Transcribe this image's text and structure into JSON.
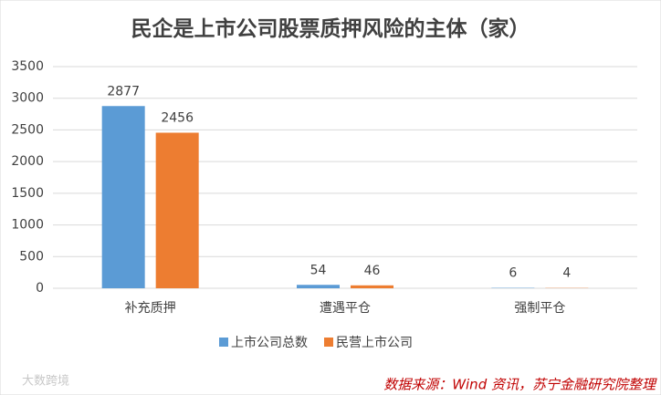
{
  "chart_data": {
    "type": "bar",
    "title": "民企是上市公司股票质押风险的主体（家）",
    "categories": [
      "补充质押",
      "遭遇平仓",
      "强制平仓"
    ],
    "series": [
      {
        "name": "上市公司总数",
        "color": "#5b9bd5",
        "values": [
          2877,
          54,
          6
        ]
      },
      {
        "name": "民营上市公司",
        "color": "#ed7d31",
        "values": [
          2456,
          46,
          4
        ]
      }
    ],
    "ylim": [
      0,
      3500
    ],
    "yticks": [
      0,
      500,
      1000,
      1500,
      2000,
      2500,
      3000,
      3500
    ],
    "grid": true,
    "legend": "bottom",
    "source": "数据来源：Wind 资讯，苏宁金融研究院整理",
    "watermark": "大数跨境"
  }
}
